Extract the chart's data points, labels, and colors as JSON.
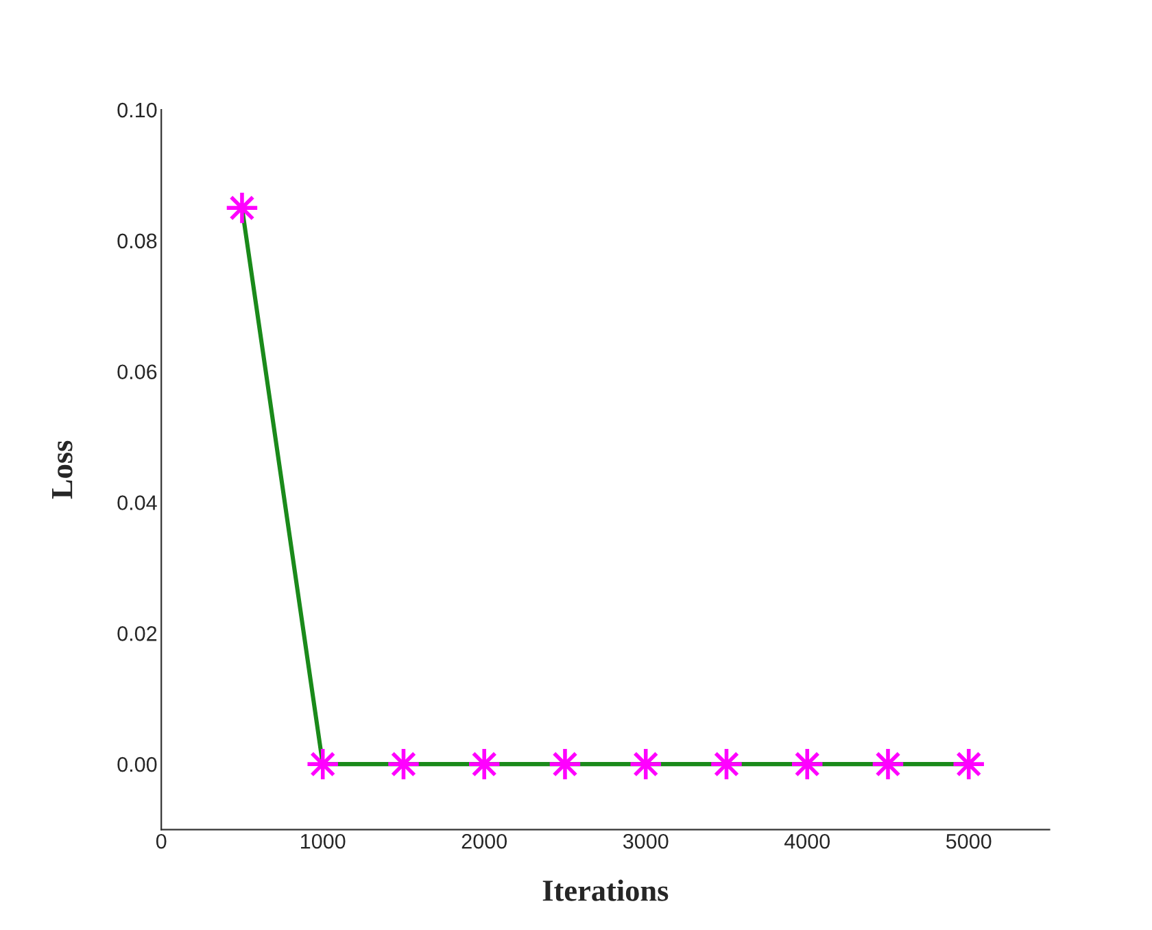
{
  "chart_data": {
    "type": "line",
    "xlabel": "Iterations",
    "ylabel": "Loss",
    "x": [
      500,
      1000,
      1500,
      2000,
      2500,
      3000,
      3500,
      4000,
      4500,
      5000
    ],
    "series": [
      {
        "color": "#1a8a1a",
        "values": [
          0.085,
          0,
          0,
          0,
          0,
          0,
          0,
          0,
          0,
          0
        ]
      }
    ],
    "marker": "star",
    "line_style": "solid",
    "grid": false,
    "xlim": [
      0,
      5500
    ],
    "xticks": [
      0,
      1000,
      2000,
      3000,
      4000,
      5000
    ],
    "ylim": [
      -0.01,
      0.1
    ],
    "yticks": [
      {
        "value": 0,
        "label": "0.00"
      },
      {
        "value": 0.02,
        "label": "0.02"
      },
      {
        "value": 0.04,
        "label": "0.04"
      },
      {
        "value": 0.06,
        "label": "0.06"
      },
      {
        "value": 0.08,
        "label": "0.08"
      },
      {
        "value": 0.1,
        "label": "0.10"
      }
    ]
  }
}
